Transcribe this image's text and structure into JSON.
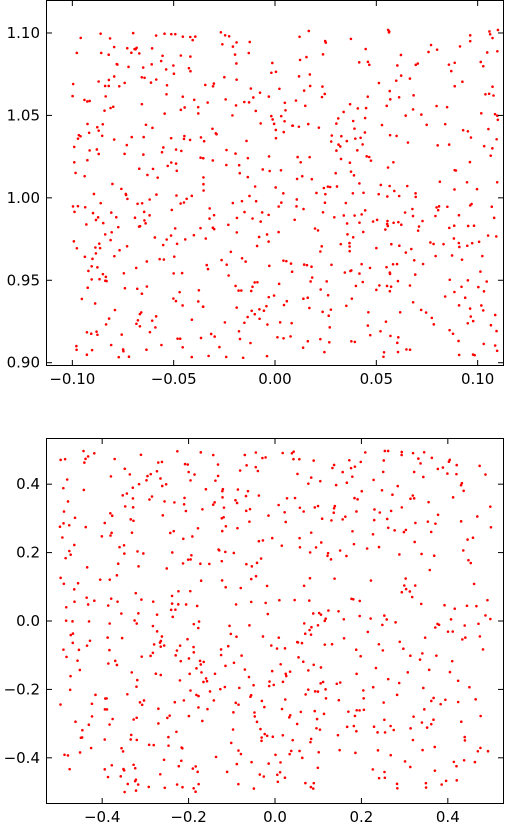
{
  "chart_data": [
    {
      "type": "scatter",
      "point_color": "#ff0000",
      "grid": false,
      "xlim": [
        -0.113,
        0.113
      ],
      "ylim": [
        0.898,
        1.12
      ],
      "xticks": [
        {
          "value": -0.1,
          "label": "−0.10"
        },
        {
          "value": -0.05,
          "label": "−0.05"
        },
        {
          "value": 0.0,
          "label": "0.00"
        },
        {
          "value": 0.05,
          "label": "0.05"
        },
        {
          "value": 0.1,
          "label": "0.10"
        }
      ],
      "yticks": [
        {
          "value": 0.9,
          "label": "0.90"
        },
        {
          "value": 0.95,
          "label": "0.95"
        },
        {
          "value": 1.0,
          "label": "1.00"
        },
        {
          "value": 1.05,
          "label": "1.05"
        },
        {
          "value": 1.1,
          "label": "1.10"
        }
      ],
      "point_count": 700,
      "description_region": {
        "x_range": [
          -0.1,
          0.11
        ],
        "y_range": [
          0.903,
          1.102
        ]
      }
    },
    {
      "type": "scatter",
      "point_color": "#ff0000",
      "grid": false,
      "xlim": [
        -0.53,
        0.53
      ],
      "ylim": [
        -0.535,
        0.535
      ],
      "xticks": [
        {
          "value": -0.4,
          "label": "−0.4"
        },
        {
          "value": -0.2,
          "label": "−0.2"
        },
        {
          "value": 0.0,
          "label": "0.0"
        },
        {
          "value": 0.2,
          "label": "0.2"
        },
        {
          "value": 0.4,
          "label": "0.4"
        }
      ],
      "yticks": [
        {
          "value": -0.4,
          "label": "−0.4"
        },
        {
          "value": -0.2,
          "label": "−0.2"
        },
        {
          "value": 0.0,
          "label": "0.0"
        },
        {
          "value": 0.2,
          "label": "0.2"
        },
        {
          "value": 0.4,
          "label": "0.4"
        }
      ],
      "point_count": 700,
      "description_region": {
        "x_range": [
          -0.5,
          0.5
        ],
        "y_range": [
          -0.5,
          0.5
        ]
      }
    }
  ]
}
